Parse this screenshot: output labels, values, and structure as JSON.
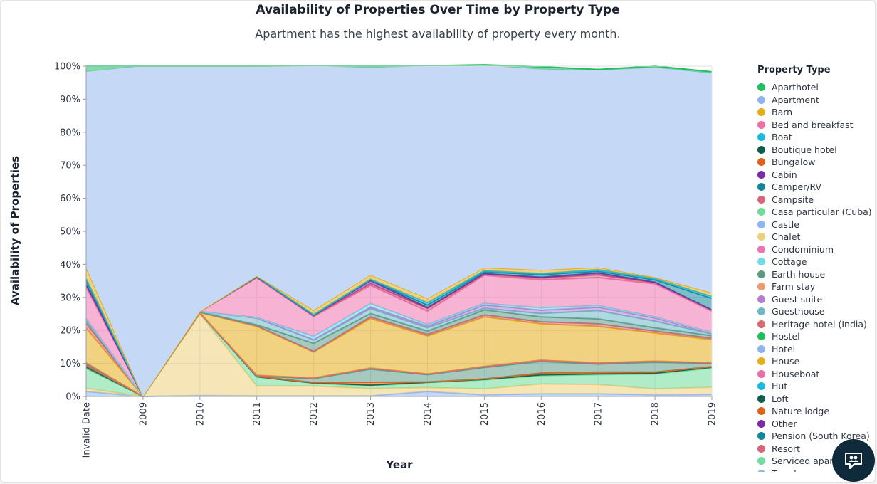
{
  "chart_data": {
    "type": "area",
    "stacked": "normalize",
    "title": "Availability of Properties Over Time by Property Type",
    "subtitle": "Apartment has the highest availability of property every month.",
    "xlabel": "Year",
    "ylabel": "Availability of Properties",
    "x": [
      "Invalid Date",
      "2009",
      "2010",
      "2011",
      "2012",
      "2013",
      "2014",
      "2015",
      "2016",
      "2017",
      "2018",
      "2019"
    ],
    "y_ticks": [
      "0%",
      "10%",
      "20%",
      "30%",
      "40%",
      "50%",
      "60%",
      "70%",
      "80%",
      "90%",
      "100%"
    ],
    "ylim": [
      0,
      1
    ],
    "grid": true,
    "legend": {
      "title": "Property Type",
      "position": "right",
      "items": [
        {
          "name": "Aparthotel",
          "color": "#1fbf5f"
        },
        {
          "name": "Apartment",
          "color": "#8fb4ee"
        },
        {
          "name": "Barn",
          "color": "#e4ad1a"
        },
        {
          "name": "Bed and breakfast",
          "color": "#ee6fa6"
        },
        {
          "name": "Boat",
          "color": "#1db9e0"
        },
        {
          "name": "Boutique hotel",
          "color": "#0f5e4b"
        },
        {
          "name": "Bungalow",
          "color": "#e0621c"
        },
        {
          "name": "Cabin",
          "color": "#7b2aa8"
        },
        {
          "name": "Camper/RV",
          "color": "#14889a"
        },
        {
          "name": "Campsite",
          "color": "#d8677a"
        },
        {
          "name": "Casa particular (Cuba)",
          "color": "#6fdc9b"
        },
        {
          "name": "Castle",
          "color": "#8fb6ef"
        },
        {
          "name": "Chalet",
          "color": "#efd07c"
        },
        {
          "name": "Condominium",
          "color": "#ee75b0"
        },
        {
          "name": "Cottage",
          "color": "#70dbea"
        },
        {
          "name": "Earth house",
          "color": "#5d9a86"
        },
        {
          "name": "Farm stay",
          "color": "#ef9a6f"
        },
        {
          "name": "Guest suite",
          "color": "#b27fcf"
        },
        {
          "name": "Guesthouse",
          "color": "#70b8c6"
        },
        {
          "name": "Heritage hotel (India)",
          "color": "#d96c73"
        },
        {
          "name": "Hostel",
          "color": "#1fbf5f"
        },
        {
          "name": "Hotel",
          "color": "#8fb4ee"
        },
        {
          "name": "House",
          "color": "#e4ad1a"
        },
        {
          "name": "Houseboat",
          "color": "#ee6fa6"
        },
        {
          "name": "Hut",
          "color": "#1db9e0"
        },
        {
          "name": "Loft",
          "color": "#0f5e4b"
        },
        {
          "name": "Nature lodge",
          "color": "#e0621c"
        },
        {
          "name": "Other",
          "color": "#7b2aa8"
        },
        {
          "name": "Pension (South Korea)",
          "color": "#14889a"
        },
        {
          "name": "Resort",
          "color": "#d8677a"
        },
        {
          "name": "Serviced apartment",
          "color": "#6fdc9b"
        },
        {
          "name": "Townhouse",
          "color": "#8fb6ef"
        }
      ]
    },
    "series": [
      {
        "name": "Castle",
        "color": "#8fb6ef",
        "values": [
          0.015,
          0,
          0.003,
          0.002,
          0.002,
          0.002,
          0.015,
          0.005,
          0.008,
          0.008,
          0.005,
          0.006
        ]
      },
      {
        "name": "Chalet",
        "color": "#efd07c",
        "values": [
          0.01,
          0,
          0.247,
          0.03,
          0.03,
          0.022,
          0.012,
          0.018,
          0.03,
          0.028,
          0.018,
          0.022
        ]
      },
      {
        "name": "Casa particular (Cuba)",
        "color": "#6fdc9b",
        "values": [
          0.06,
          0,
          0.002,
          0.027,
          0.008,
          0.008,
          0.015,
          0.027,
          0.025,
          0.03,
          0.045,
          0.058
        ]
      },
      {
        "name": "Boutique hotel",
        "color": "#0f5e4b",
        "values": [
          0.005,
          0,
          0.001,
          0.001,
          0.001,
          0.003,
          0.001,
          0.002,
          0.003,
          0.003,
          0.003,
          0.003
        ]
      },
      {
        "name": "Bungalow",
        "color": "#e0621c",
        "values": [
          0.003,
          0,
          0,
          0.001,
          0.001,
          0.008,
          0.001,
          0.001,
          0.005,
          0.005,
          0.003,
          0.001
        ]
      },
      {
        "name": "Earth house",
        "color": "#5d9a86",
        "values": [
          0.004,
          0,
          0,
          0.001,
          0.012,
          0.04,
          0.022,
          0.035,
          0.035,
          0.024,
          0.03,
          0.01
        ]
      },
      {
        "name": "Heritage hotel (India)",
        "color": "#d96c73",
        "values": [
          0.005,
          0,
          0,
          0.002,
          0.002,
          0.003,
          0.002,
          0.003,
          0.004,
          0.004,
          0.003,
          0.002
        ]
      },
      {
        "name": "Barn",
        "color": "#e4ad1a",
        "values": [
          0.105,
          0,
          0.001,
          0.148,
          0.078,
          0.15,
          0.115,
          0.15,
          0.11,
          0.11,
          0.085,
          0.07
        ]
      },
      {
        "name": "Campsite",
        "color": "#d8677a",
        "values": [
          0.015,
          0,
          0.001,
          0.002,
          0.002,
          0.005,
          0.005,
          0.006,
          0.006,
          0.008,
          0.006,
          0.004
        ]
      },
      {
        "name": "Earth house",
        "color": "#5d9a86",
        "values": [
          0.01,
          0,
          0.001,
          0.003,
          0.025,
          0.01,
          0.01,
          0.015,
          0.015,
          0.015,
          0.01,
          0.008
        ]
      },
      {
        "name": "Guesthouse",
        "color": "#70b8c6",
        "values": [
          0.001,
          0,
          0.001,
          0.02,
          0.01,
          0.015,
          0.01,
          0.005,
          0.01,
          0.025,
          0.02,
          0.005
        ]
      },
      {
        "name": "Guest suite",
        "color": "#b27fcf",
        "values": [
          0.001,
          0,
          0,
          0.001,
          0.001,
          0.005,
          0.005,
          0.01,
          0.01,
          0.01,
          0.01,
          0.002
        ]
      },
      {
        "name": "Cottage",
        "color": "#70dbea",
        "values": [
          0.002,
          0,
          0,
          0.001,
          0.01,
          0.01,
          0.005,
          0.005,
          0.007,
          0.005,
          0.003,
          0.002
        ]
      },
      {
        "name": "Bed and breakfast",
        "color": "#ee75b0",
        "values": [
          0.095,
          0,
          0,
          0.12,
          0.06,
          0.055,
          0.04,
          0.085,
          0.085,
          0.085,
          0.1,
          0.065
        ]
      },
      {
        "name": "Campsite",
        "color": "#d8677a",
        "values": [
          0.007,
          0,
          0,
          0.002,
          0.002,
          0.005,
          0.008,
          0.003,
          0.005,
          0.008,
          0.003,
          0.003
        ]
      },
      {
        "name": "Cabin",
        "color": "#7b2aa8",
        "values": [
          0.001,
          0,
          0,
          0.001,
          0.001,
          0.01,
          0.003,
          0.002,
          0.003,
          0.006,
          0.002,
          0.001
        ]
      },
      {
        "name": "Camper/RV",
        "color": "#14889a",
        "values": [
          0.012,
          0,
          0,
          0.001,
          0.001,
          0.002,
          0.008,
          0.005,
          0.008,
          0.005,
          0.007,
          0.035
        ]
      },
      {
        "name": "Boat",
        "color": "#1db9e0",
        "values": [
          0.006,
          0,
          0,
          0.001,
          0.002,
          0.002,
          0.007,
          0.004,
          0.003,
          0.005,
          0.004,
          0.006
        ]
      },
      {
        "name": "Barn",
        "color": "#e4ad1a",
        "values": [
          0.033,
          0,
          0,
          0.001,
          0.013,
          0.013,
          0.013,
          0.009,
          0.011,
          0.007,
          0.004,
          0.011
        ]
      },
      {
        "name": "Apartment",
        "color": "#c5d8f6",
        "values": [
          0.593,
          1.0,
          0.742,
          0.633,
          0.739,
          0.627,
          0.703,
          0.612,
          0.607,
          0.596,
          0.634,
          0.664
        ]
      },
      {
        "name": "Aparthotel",
        "color": "#1fbf5f",
        "values": [
          0.017,
          0,
          0.001,
          0.002,
          0.001,
          0.005,
          0.001,
          0.002,
          0.008,
          0.003,
          0.005,
          0.005
        ]
      }
    ]
  },
  "widget": {
    "chat_icon": "chat-support-icon"
  }
}
